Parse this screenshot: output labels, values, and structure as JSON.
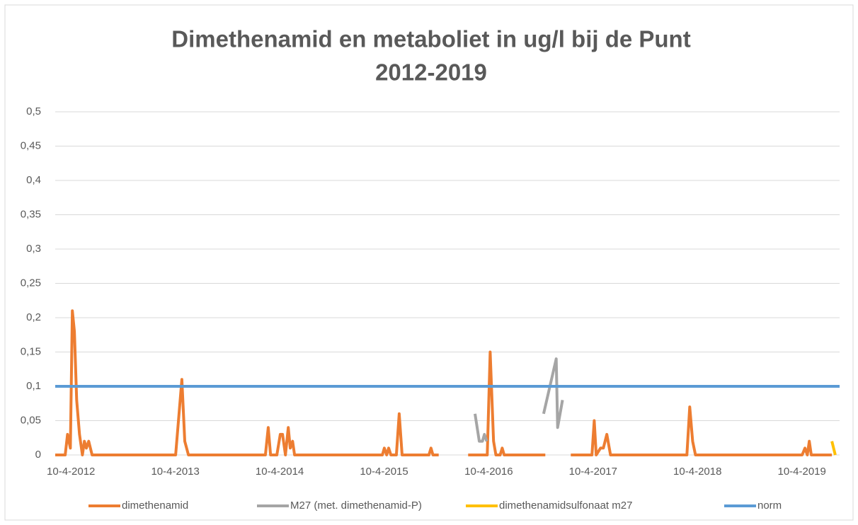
{
  "chart_data": {
    "type": "line",
    "title": [
      "Dimethenamid en metaboliet in ug/l bij de Punt",
      "2012-2019"
    ],
    "xlim": [
      "15-2-2012",
      "20-8-2019"
    ],
    "xticks": [
      "10-4-2012",
      "10-4-2013",
      "10-4-2014",
      "10-4-2015",
      "10-4-2016",
      "10-4-2017",
      "10-4-2018",
      "10-4-2019"
    ],
    "ylim": [
      0,
      0.5
    ],
    "yticks": [
      {
        "value": 0,
        "label": "0"
      },
      {
        "value": 0.05,
        "label": "0,05"
      },
      {
        "value": 0.1,
        "label": "0,1"
      },
      {
        "value": 0.15,
        "label": "0,15"
      },
      {
        "value": 0.2,
        "label": "0,2"
      },
      {
        "value": 0.25,
        "label": "0,25"
      },
      {
        "value": 0.3,
        "label": "0,3"
      },
      {
        "value": 0.35,
        "label": "0,35"
      },
      {
        "value": 0.4,
        "label": "0,4"
      },
      {
        "value": 0.45,
        "label": "0,45"
      },
      {
        "value": 0.5,
        "label": "0,5"
      }
    ],
    "grid": true,
    "legend": "bottom",
    "series": [
      {
        "name": "dimethenamid",
        "color": "#ed7d31",
        "x": [
          "15-2-2012",
          "21-3-2012",
          "29-3-2012",
          "8-4-2012",
          "15-4-2012",
          "22-4-2012",
          "30-4-2012",
          "10-5-2012",
          "20-5-2012",
          "27-5-2012",
          "3-6-2012",
          "11-6-2012",
          "23-6-2012",
          "11-4-2013",
          "3-5-2013",
          "13-5-2013",
          "26-5-2013",
          "19-2-2014",
          "1-3-2014",
          "9-3-2014",
          "31-3-2014",
          "12-4-2014",
          "20-4-2014",
          "30-4-2014",
          "10-5-2014",
          "17-5-2014",
          "25-5-2014",
          "1-6-2014",
          "4-4-2015",
          "11-4-2015",
          "19-4-2015",
          "26-4-2015",
          "4-5-2015",
          "23-5-2015",
          "2-6-2015",
          "12-6-2015",
          "14-9-2015",
          "21-9-2015",
          "28-9-2015",
          "18-10-2015",
          "1-12-2015",
          "29-1-2016",
          "5-4-2016",
          "15-4-2016",
          "27-4-2016",
          "5-5-2016",
          "20-5-2016",
          "27-5-2016",
          "3-6-2016",
          "25-10-2016",
          "1-12-2016",
          "22-1-2017",
          "6-4-2017",
          "14-4-2017",
          "21-4-2017",
          "6-5-2017",
          "16-5-2017",
          "28-5-2017",
          "10-6-2017",
          "4-3-2018",
          "14-3-2018",
          "24-3-2018",
          "3-4-2018",
          "11-4-2019",
          "21-4-2019",
          "29-4-2019",
          "6-5-2019",
          "13-5-2019",
          "24-7-2019"
        ],
        "values": [
          0,
          0,
          0.03,
          0.01,
          0.21,
          0.18,
          0.08,
          0.03,
          0,
          0.02,
          0.01,
          0.02,
          0,
          0,
          0.11,
          0.02,
          0,
          0,
          0.04,
          0,
          0,
          0.03,
          0.03,
          0,
          0.04,
          0.01,
          0.02,
          0,
          0,
          0.01,
          0,
          0.01,
          0,
          0,
          0.06,
          0,
          0,
          0.01,
          0,
          0,
          null,
          0,
          0,
          0.15,
          0.02,
          0,
          0,
          0.01,
          0,
          0,
          null,
          0,
          0,
          0.05,
          0,
          0.01,
          0.01,
          0.03,
          0,
          0,
          0.07,
          0.02,
          0,
          0,
          0.01,
          0,
          0.02,
          0,
          0
        ]
      },
      {
        "name": "M27 (met. dimethenamid-P)",
        "color": "#a5a5a5",
        "x": [
          "22-2-2016",
          "8-3-2016",
          "19-3-2016",
          "26-3-2016",
          "3-4-2016",
          "1-6-2016",
          "19-10-2016",
          "2-12-2016",
          "7-12-2016",
          "24-12-2016"
        ],
        "values": [
          0.06,
          0.02,
          0.02,
          0.03,
          0.02,
          null,
          0.06,
          0.14,
          0.04,
          0.08
        ]
      },
      {
        "name": "dimethenamidsulfonaat m27",
        "color": "#ffc000",
        "x": [
          "24-7-2019",
          "5-8-2019"
        ],
        "values": [
          0.02,
          0
        ]
      },
      {
        "name": "norm",
        "color": "#5b9bd5",
        "x": [
          "15-2-2012",
          "20-8-2019"
        ],
        "values": [
          0.1,
          0.1
        ]
      }
    ]
  }
}
